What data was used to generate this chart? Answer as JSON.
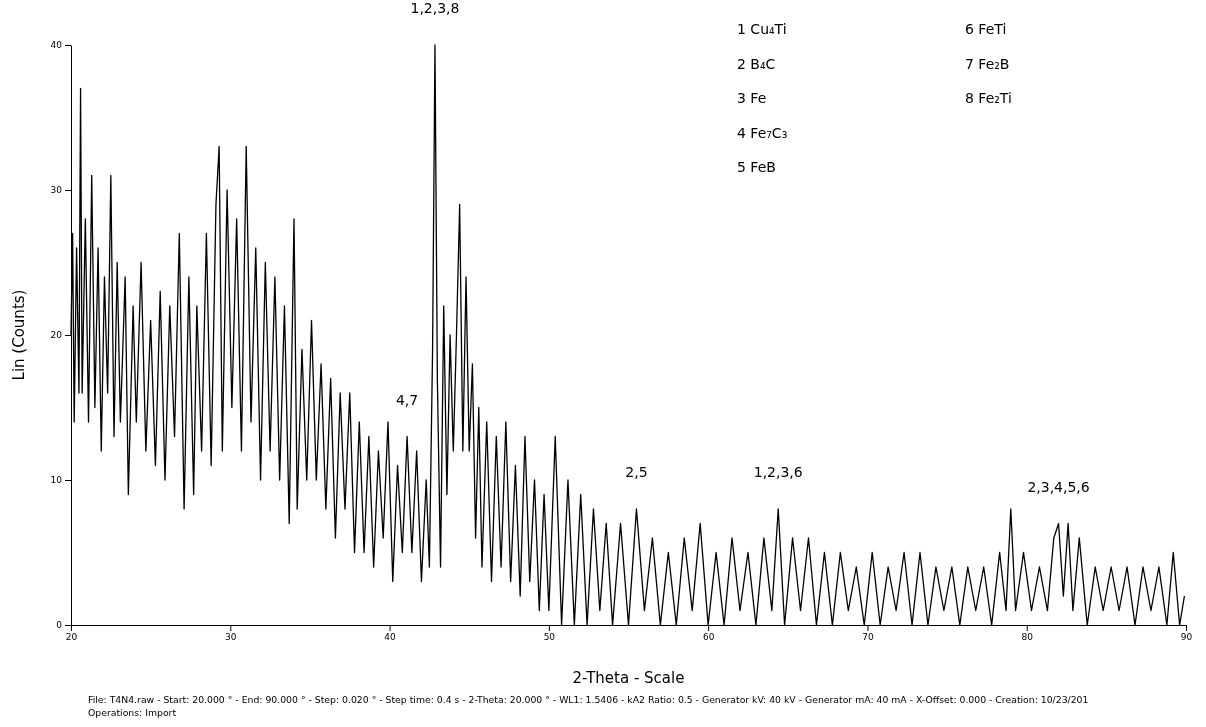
{
  "chart_data": {
    "type": "line",
    "xlabel": "2-Theta - Scale",
    "ylabel": "Lin (Counts)",
    "xlim": [
      20,
      90
    ],
    "xticks": [
      20,
      30,
      40,
      50,
      60,
      70,
      80,
      90
    ],
    "ylim": [
      0,
      40
    ],
    "yticks": [
      0,
      10,
      20,
      30,
      40
    ],
    "grid": false,
    "marker": "none",
    "line_style": "solid",
    "series": [
      {
        "color": "#000000",
        "x": [
          20.0,
          20.1,
          20.2,
          20.35,
          20.5,
          20.6,
          20.7,
          20.9,
          21.1,
          21.3,
          21.5,
          21.7,
          21.9,
          22.1,
          22.3,
          22.5,
          22.7,
          22.9,
          23.1,
          23.4,
          23.6,
          23.9,
          24.1,
          24.4,
          24.7,
          25.0,
          25.3,
          25.6,
          25.9,
          26.2,
          26.5,
          26.8,
          27.1,
          27.4,
          27.7,
          27.9,
          28.2,
          28.5,
          28.8,
          29.1,
          29.3,
          29.5,
          29.8,
          30.1,
          30.4,
          30.7,
          31.0,
          31.3,
          31.6,
          31.9,
          32.2,
          32.5,
          32.8,
          33.1,
          33.4,
          33.7,
          34.0,
          34.2,
          34.5,
          34.8,
          35.1,
          35.4,
          35.7,
          36.0,
          36.3,
          36.6,
          36.9,
          37.2,
          37.5,
          37.8,
          38.1,
          38.4,
          38.7,
          39.0,
          39.3,
          39.6,
          39.9,
          40.2,
          40.5,
          40.8,
          41.1,
          41.4,
          41.7,
          42.0,
          42.3,
          42.5,
          42.7,
          42.85,
          43.0,
          43.2,
          43.4,
          43.6,
          43.8,
          44.0,
          44.2,
          44.4,
          44.6,
          44.8,
          45.0,
          45.2,
          45.4,
          45.6,
          45.8,
          46.1,
          46.4,
          46.7,
          47.0,
          47.3,
          47.6,
          47.9,
          48.2,
          48.5,
          48.8,
          49.1,
          49.4,
          49.7,
          50.0,
          50.4,
          50.8,
          51.2,
          51.6,
          52.0,
          52.4,
          52.8,
          53.2,
          53.6,
          54.0,
          54.5,
          55.0,
          55.5,
          56.0,
          56.5,
          57.0,
          57.5,
          58.0,
          58.5,
          59.0,
          59.5,
          60.0,
          60.5,
          61.0,
          61.5,
          62.0,
          62.5,
          63.0,
          63.5,
          64.0,
          64.4,
          64.8,
          65.3,
          65.8,
          66.3,
          66.8,
          67.3,
          67.8,
          68.3,
          68.8,
          69.3,
          69.8,
          70.3,
          70.8,
          71.3,
          71.8,
          72.3,
          72.8,
          73.3,
          73.8,
          74.3,
          74.8,
          75.3,
          75.8,
          76.3,
          76.8,
          77.3,
          77.8,
          78.3,
          78.7,
          79.0,
          79.3,
          79.8,
          80.3,
          80.8,
          81.3,
          81.7,
          82.0,
          82.3,
          82.6,
          82.9,
          83.3,
          83.8,
          84.3,
          84.8,
          85.3,
          85.8,
          86.3,
          86.8,
          87.3,
          87.8,
          88.3,
          88.8,
          89.2,
          89.6,
          89.9
        ],
        "values": [
          20,
          27,
          14,
          26,
          16,
          37,
          16,
          28,
          14,
          31,
          15,
          26,
          12,
          24,
          16,
          31,
          13,
          25,
          14,
          24,
          9,
          22,
          14,
          25,
          12,
          21,
          11,
          23,
          10,
          22,
          13,
          27,
          8,
          24,
          9,
          22,
          12,
          27,
          11,
          29,
          33,
          12,
          30,
          15,
          28,
          12,
          33,
          14,
          26,
          10,
          25,
          12,
          24,
          10,
          22,
          7,
          28,
          8,
          19,
          10,
          21,
          10,
          18,
          8,
          17,
          6,
          16,
          8,
          16,
          5,
          14,
          5,
          13,
          4,
          12,
          6,
          14,
          3,
          11,
          5,
          13,
          5,
          12,
          3,
          10,
          4,
          19,
          40,
          17,
          4,
          22,
          9,
          20,
          12,
          20,
          29,
          12,
          24,
          12,
          18,
          6,
          15,
          4,
          14,
          3,
          13,
          4,
          14,
          3,
          11,
          2,
          13,
          3,
          10,
          1,
          9,
          1,
          13,
          0,
          10,
          0,
          9,
          0,
          8,
          1,
          7,
          0,
          7,
          0,
          8,
          1,
          6,
          0,
          5,
          0,
          6,
          1,
          7,
          0,
          5,
          0,
          6,
          1,
          5,
          0,
          6,
          1,
          8,
          0,
          6,
          1,
          6,
          0,
          5,
          0,
          5,
          1,
          4,
          0,
          5,
          0,
          4,
          1,
          5,
          0,
          5,
          0,
          4,
          1,
          4,
          0,
          4,
          1,
          4,
          0,
          5,
          1,
          8,
          1,
          5,
          1,
          4,
          1,
          6,
          7,
          2,
          7,
          1,
          6,
          0,
          4,
          1,
          4,
          1,
          4,
          0,
          4,
          1,
          4,
          0,
          5,
          0,
          2
        ]
      }
    ],
    "annotations": [
      "1 Cu₄Ti",
      "2 B₄C",
      "3 Fe",
      "4 Fe₇C₃",
      "5 FeB",
      "6 FeTi",
      "7 Fe₂B",
      "8 Fe₂Ti",
      {
        "text": "1,2,3,8",
        "x": 42.85,
        "y": 40
      },
      {
        "text": "4,7",
        "x": 41.1,
        "y": 13
      },
      {
        "text": "2,5",
        "x": 55.5,
        "y": 8
      },
      {
        "text": "1,2,3,6",
        "x": 64.4,
        "y": 8
      },
      {
        "text": "2,3,4,5,6",
        "x": 82.0,
        "y": 7
      },
      "File: T4N4.raw - Start: 20.000 ° - End: 90.000 ° - Step: 0.020 ° - Step time: 0.4 s - 2-Theta: 20.000 ° - WL1: 1.5406 - kA2 Ratio: 0.5 - Generator kV: 40 kV - Generator mA: 40 mA - X-Offset: 0.000 - Creation: 10/23/201",
      "Operations: Import"
    ]
  }
}
